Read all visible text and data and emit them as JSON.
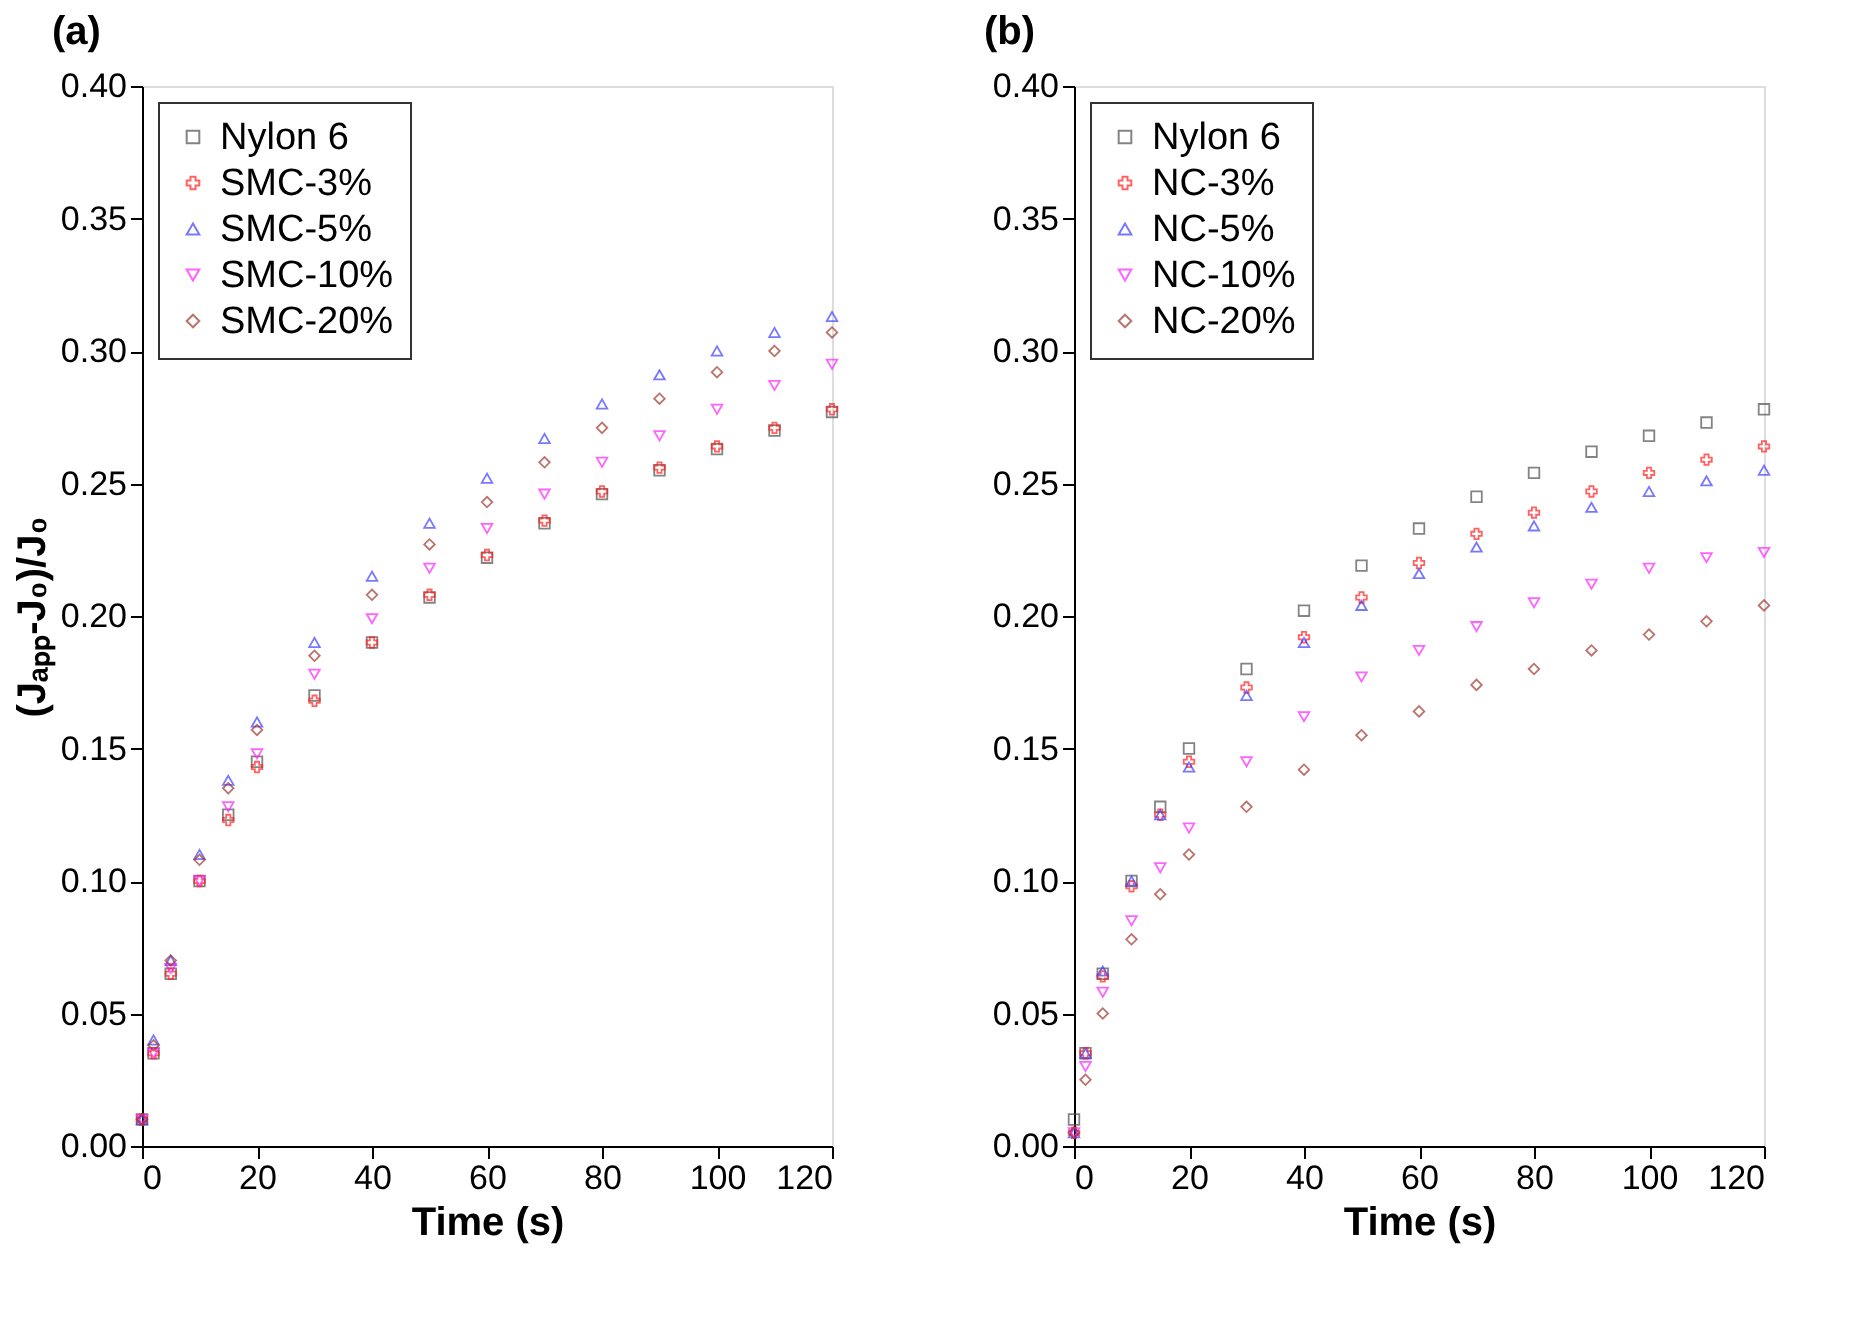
{
  "chart_data": [
    {
      "type": "scatter",
      "title": "(a)",
      "xlabel": "Time (s)",
      "ylabel": "(Jₐₚₚ-J₀)/J₀",
      "x": [
        0,
        2,
        5,
        10,
        15,
        20,
        30,
        40,
        50,
        60,
        70,
        80,
        90,
        100,
        110,
        120
      ],
      "xlim": [
        0,
        120
      ],
      "xticks": [
        0,
        20,
        40,
        60,
        80,
        100,
        120
      ],
      "ylim": [
        0,
        0.4
      ],
      "yticks": [
        {
          "value": 0,
          "label": "0.00"
        },
        {
          "value": 0.05,
          "label": "0.05"
        },
        {
          "value": 0.1,
          "label": "0.10"
        },
        {
          "value": 0.15,
          "label": "0.15"
        },
        {
          "value": 0.2,
          "label": "0.20"
        },
        {
          "value": 0.25,
          "label": "0.25"
        },
        {
          "value": 0.3,
          "label": "0.30"
        },
        {
          "value": 0.35,
          "label": "0.35"
        },
        {
          "value": 0.4,
          "label": "0.40"
        }
      ],
      "grid": false,
      "legend": "top left",
      "series": [
        {
          "name": "Nylon 6",
          "color": "#505050",
          "marker": "square",
          "values": [
            0.01,
            0.035,
            0.065,
            0.1,
            0.125,
            0.145,
            0.17,
            0.19,
            0.207,
            0.222,
            0.235,
            0.246,
            0.255,
            0.263,
            0.27,
            0.277
          ]
        },
        {
          "name": "SMC-3%",
          "color": "#ff2020",
          "marker": "cross",
          "values": [
            0.01,
            0.035,
            0.065,
            0.1,
            0.123,
            0.143,
            0.168,
            0.19,
            0.208,
            0.223,
            0.236,
            0.247,
            0.256,
            0.264,
            0.271,
            0.278
          ]
        },
        {
          "name": "SMC-5%",
          "color": "#4040ff",
          "marker": "triangle",
          "values": [
            0.01,
            0.04,
            0.07,
            0.11,
            0.138,
            0.16,
            0.19,
            0.215,
            0.235,
            0.252,
            0.267,
            0.28,
            0.291,
            0.3,
            0.307,
            0.313
          ]
        },
        {
          "name": "SMC-10%",
          "color": "#ff20ff",
          "marker": "triangle-down",
          "values": [
            0.01,
            0.035,
            0.067,
            0.1,
            0.128,
            0.148,
            0.178,
            0.199,
            0.218,
            0.233,
            0.246,
            0.258,
            0.268,
            0.278,
            0.287,
            0.295
          ]
        },
        {
          "name": "SMC-20%",
          "color": "#a03830",
          "marker": "diamond",
          "values": [
            0.01,
            0.038,
            0.07,
            0.108,
            0.135,
            0.157,
            0.185,
            0.208,
            0.227,
            0.243,
            0.258,
            0.271,
            0.282,
            0.292,
            0.3,
            0.307
          ]
        }
      ]
    },
    {
      "type": "scatter",
      "title": "(b)",
      "xlabel": "Time (s)",
      "x": [
        0,
        2,
        5,
        10,
        15,
        20,
        30,
        40,
        50,
        60,
        70,
        80,
        90,
        100,
        110,
        120
      ],
      "xlim": [
        0,
        120
      ],
      "xticks": [
        0,
        20,
        40,
        60,
        80,
        100,
        120
      ],
      "ylim": [
        0,
        0.4
      ],
      "yticks": [
        {
          "value": 0,
          "label": "0.00"
        },
        {
          "value": 0.05,
          "label": "0.05"
        },
        {
          "value": 0.1,
          "label": "0.10"
        },
        {
          "value": 0.15,
          "label": "0.15"
        },
        {
          "value": 0.2,
          "label": "0.20"
        },
        {
          "value": 0.25,
          "label": "0.25"
        },
        {
          "value": 0.3,
          "label": "0.30"
        },
        {
          "value": 0.35,
          "label": "0.35"
        },
        {
          "value": 0.4,
          "label": "0.40"
        }
      ],
      "grid": false,
      "legend": "top left",
      "series": [
        {
          "name": "Nylon 6",
          "color": "#505050",
          "marker": "square",
          "values": [
            0.01,
            0.035,
            0.065,
            0.1,
            0.128,
            0.15,
            0.18,
            0.202,
            0.219,
            0.233,
            0.245,
            0.254,
            0.262,
            0.268,
            0.273,
            0.278
          ]
        },
        {
          "name": "NC-3%",
          "color": "#ff2020",
          "marker": "cross",
          "values": [
            0.005,
            0.035,
            0.064,
            0.098,
            0.125,
            0.145,
            0.173,
            0.192,
            0.207,
            0.22,
            0.231,
            0.239,
            0.247,
            0.254,
            0.259,
            0.264
          ]
        },
        {
          "name": "NC-5%",
          "color": "#4040ff",
          "marker": "triangle",
          "values": [
            0.005,
            0.035,
            0.066,
            0.1,
            0.125,
            0.143,
            0.17,
            0.19,
            0.204,
            0.216,
            0.226,
            0.234,
            0.241,
            0.247,
            0.251,
            0.255
          ]
        },
        {
          "name": "NC-10%",
          "color": "#ff20ff",
          "marker": "triangle-down",
          "values": [
            0.005,
            0.03,
            0.058,
            0.085,
            0.105,
            0.12,
            0.145,
            0.162,
            0.177,
            0.187,
            0.196,
            0.205,
            0.212,
            0.218,
            0.222,
            0.224
          ]
        },
        {
          "name": "NC-20%",
          "color": "#a03830",
          "marker": "diamond",
          "values": [
            0.005,
            0.025,
            0.05,
            0.078,
            0.095,
            0.11,
            0.128,
            0.142,
            0.155,
            0.164,
            0.174,
            0.18,
            0.187,
            0.193,
            0.198,
            0.204
          ]
        }
      ]
    }
  ]
}
